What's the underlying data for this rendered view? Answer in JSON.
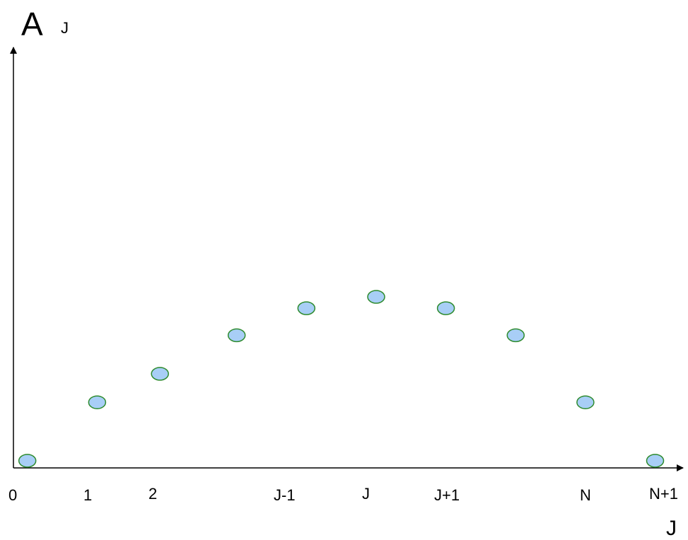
{
  "chart_data": {
    "type": "scatter",
    "title": "",
    "ylabel_main": "A",
    "ylabel_sub": "J",
    "xlabel": "J",
    "grid": false,
    "legend": "none",
    "tick_labels": [
      "0",
      "1",
      "2",
      "J-1",
      "J",
      "J+1",
      "N",
      "N+1"
    ],
    "points": [
      {
        "x": 0.0,
        "y": 0.0
      },
      {
        "x": 1.0,
        "y": 0.41
      },
      {
        "x": 1.9,
        "y": 0.61
      },
      {
        "x": 3.0,
        "y": 0.88
      },
      {
        "x": 4.0,
        "y": 1.07
      },
      {
        "x": 5.0,
        "y": 1.15
      },
      {
        "x": 6.0,
        "y": 1.07
      },
      {
        "x": 7.0,
        "y": 0.88
      },
      {
        "x": 8.0,
        "y": 0.41
      },
      {
        "x": 9.0,
        "y": 0.0
      }
    ],
    "xlim": [
      -0.2,
      9.4
    ],
    "ylim": [
      -0.05,
      2.9
    ],
    "marker_fill": "#a8cef6",
    "marker_stroke": "#2e8b2e",
    "axis_color": "#000000"
  }
}
